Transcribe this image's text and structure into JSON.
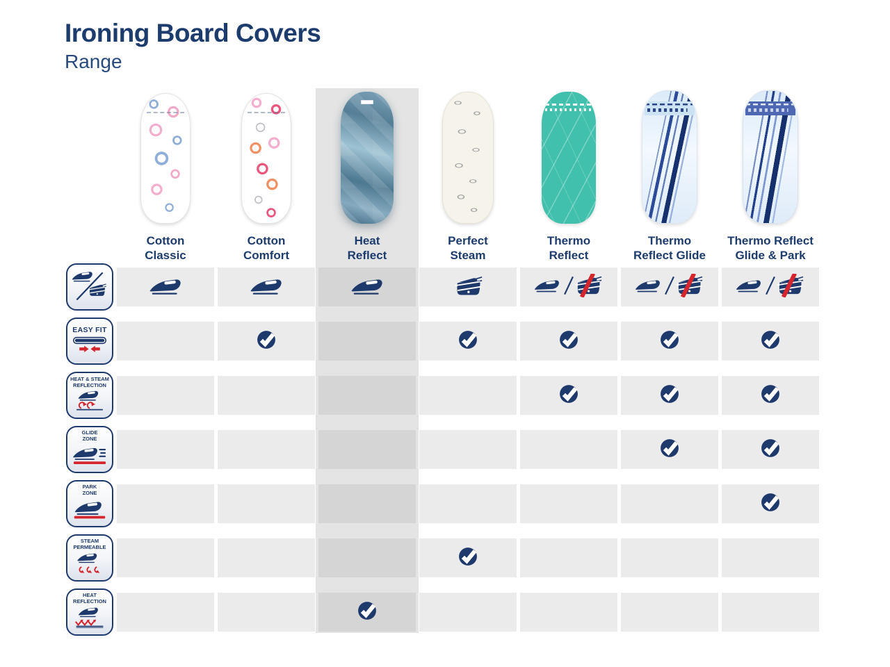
{
  "header": {
    "title": "Ironing Board Covers",
    "subtitle": "Range"
  },
  "accent_colors": {
    "navy": "#1e3a6d",
    "red": "#d4262c",
    "cell_bg": "#ebebeb",
    "highlight_band": "#e4e4e4",
    "highlight_cell": "#d5d5d5",
    "teal": "#40c0ad"
  },
  "products": [
    {
      "label": "Cotton\nClassic",
      "cover": "floral-blue-pink",
      "cover_desc": "white-with-blue-and-pink-flowers",
      "highlighted": false
    },
    {
      "label": "Cotton\nComfort",
      "cover": "floral-pink-orange",
      "cover_desc": "white-with-pink-orange-red-flowers",
      "highlighted": false
    },
    {
      "label": "Heat\nReflect",
      "cover": "metallic-blue-diamond",
      "cover_desc": "metallic-steel-blue-diamond-pattern",
      "highlighted": true
    },
    {
      "label": "Perfect\nSteam",
      "cover": "leaf-sketch-cream",
      "cover_desc": "cream-with-sketched-grey-leaves",
      "highlighted": false
    },
    {
      "label": "Thermo\nReflect",
      "cover": "teal-feather",
      "cover_desc": "turquoise-with-white-feathers",
      "highlighted": false
    },
    {
      "label": "Thermo\nReflect Glide",
      "cover": "blue-stripes-light",
      "cover_desc": "pale-blue-with-dark-diagonal-stripes-light-top-band",
      "highlighted": false
    },
    {
      "label": "Thermo Reflect\nGlide & Park",
      "cover": "blue-stripes-dark",
      "cover_desc": "pale-blue-with-dark-diagonal-stripes-blue-top-band",
      "highlighted": false
    }
  ],
  "features": [
    {
      "id": "iron-type",
      "label": "",
      "icon": "steam-iron-and-generator-icon",
      "values": [
        "steam-iron",
        "steam-iron",
        "steam-iron",
        "steam-generator",
        "steam-iron-no-generator",
        "steam-iron-no-generator",
        "steam-iron-no-generator"
      ]
    },
    {
      "id": "easy-fit",
      "label": "EASY FIT",
      "icon": "easy-fit-icon",
      "values": [
        false,
        true,
        false,
        true,
        true,
        true,
        true
      ]
    },
    {
      "id": "heat-steam-reflection",
      "label": "HEAT & STEAM\nREFLECTION",
      "icon": "heat-steam-reflection-icon",
      "values": [
        false,
        false,
        false,
        false,
        true,
        true,
        true
      ]
    },
    {
      "id": "glide-zone",
      "label": "GLIDE\nZONE",
      "icon": "glide-zone-icon",
      "values": [
        false,
        false,
        false,
        false,
        false,
        true,
        true
      ]
    },
    {
      "id": "park-zone",
      "label": "PARK\nZONE",
      "icon": "park-zone-icon",
      "values": [
        false,
        false,
        false,
        false,
        false,
        false,
        true
      ]
    },
    {
      "id": "steam-permeable",
      "label": "STEAM\nPERMEABLE",
      "icon": "steam-permeable-icon",
      "values": [
        false,
        false,
        false,
        true,
        false,
        false,
        false
      ]
    },
    {
      "id": "heat-reflection",
      "label": "HEAT\nREFLECTION",
      "icon": "heat-reflection-icon",
      "values": [
        false,
        false,
        true,
        false,
        false,
        false,
        false
      ]
    }
  ],
  "check_icon": "check-circle-icon"
}
